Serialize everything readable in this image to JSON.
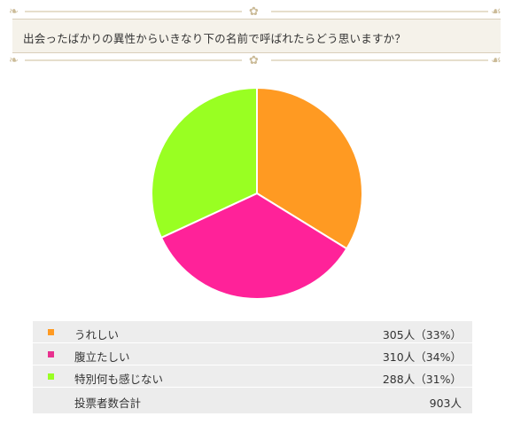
{
  "question": "出会ったばかりの異性からいきなり下の名前で呼ばれたらどう思いますか？",
  "chart_data": {
    "type": "pie",
    "title": "",
    "categories": [
      "うれしい",
      "腹立たしい",
      "特別何も感じない"
    ],
    "values": [
      305,
      310,
      288
    ],
    "percentages": [
      33,
      34,
      31
    ],
    "colors": [
      "#ff9a22",
      "#ff2299",
      "#99ff22"
    ],
    "legend_position": "bottom"
  },
  "results": {
    "rows": [
      {
        "label": "うれしい",
        "value_text": "305人（33%）",
        "color": "#ff9a22"
      },
      {
        "label": "腹立たしい",
        "value_text": "310人（34%）",
        "color": "#e8318f"
      },
      {
        "label": "特別何も感じない",
        "value_text": "288人（31%）",
        "color": "#99ff22"
      }
    ],
    "total_label": "投票者数合計",
    "total_value": "903人"
  }
}
